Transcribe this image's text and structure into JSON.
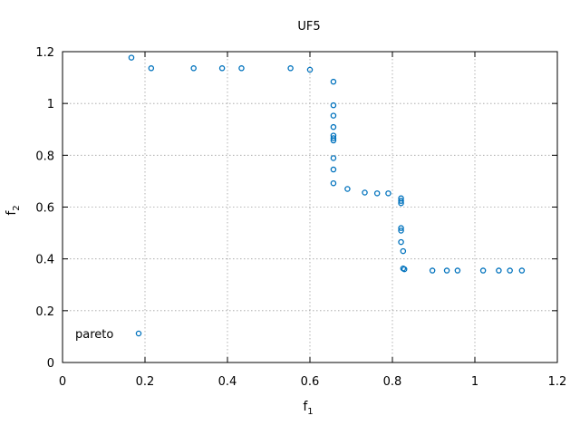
{
  "chart_data": {
    "type": "scatter",
    "title": "UF5",
    "xlabel": {
      "base": "f",
      "sub": "1"
    },
    "ylabel": {
      "base": "f",
      "sub": "2"
    },
    "xlim": [
      0,
      1.2
    ],
    "ylim": [
      0,
      1.2
    ],
    "xticks": [
      "0",
      "0.2",
      "0.4",
      "0.6",
      "0.8",
      "1",
      "1.2"
    ],
    "yticks": [
      "0",
      "0.2",
      "0.4",
      "0.6",
      "0.8",
      "1",
      "1.2"
    ],
    "grid": true,
    "legend_position": "bottom-left",
    "series": [
      {
        "name": "pareto",
        "color": "#0072bd",
        "marker": "circle-open",
        "points": [
          [
            0.167,
            1.177
          ],
          [
            0.215,
            1.136
          ],
          [
            0.318,
            1.136
          ],
          [
            0.387,
            1.136
          ],
          [
            0.434,
            1.136
          ],
          [
            0.553,
            1.136
          ],
          [
            0.6,
            1.13
          ],
          [
            0.657,
            1.084
          ],
          [
            0.657,
            0.993
          ],
          [
            0.657,
            0.953
          ],
          [
            0.657,
            0.909
          ],
          [
            0.657,
            0.876
          ],
          [
            0.657,
            0.866
          ],
          [
            0.657,
            0.857
          ],
          [
            0.657,
            0.789
          ],
          [
            0.657,
            0.745
          ],
          [
            0.657,
            0.692
          ],
          [
            0.691,
            0.67
          ],
          [
            0.733,
            0.656
          ],
          [
            0.763,
            0.653
          ],
          [
            0.79,
            0.653
          ],
          [
            0.821,
            0.634
          ],
          [
            0.821,
            0.624
          ],
          [
            0.821,
            0.615
          ],
          [
            0.821,
            0.519
          ],
          [
            0.821,
            0.509
          ],
          [
            0.821,
            0.465
          ],
          [
            0.826,
            0.43
          ],
          [
            0.826,
            0.363
          ],
          [
            0.829,
            0.36
          ],
          [
            0.897,
            0.355
          ],
          [
            0.932,
            0.355
          ],
          [
            0.958,
            0.355
          ],
          [
            1.02,
            0.355
          ],
          [
            1.058,
            0.355
          ],
          [
            1.085,
            0.355
          ],
          [
            1.114,
            0.355
          ]
        ]
      }
    ]
  }
}
